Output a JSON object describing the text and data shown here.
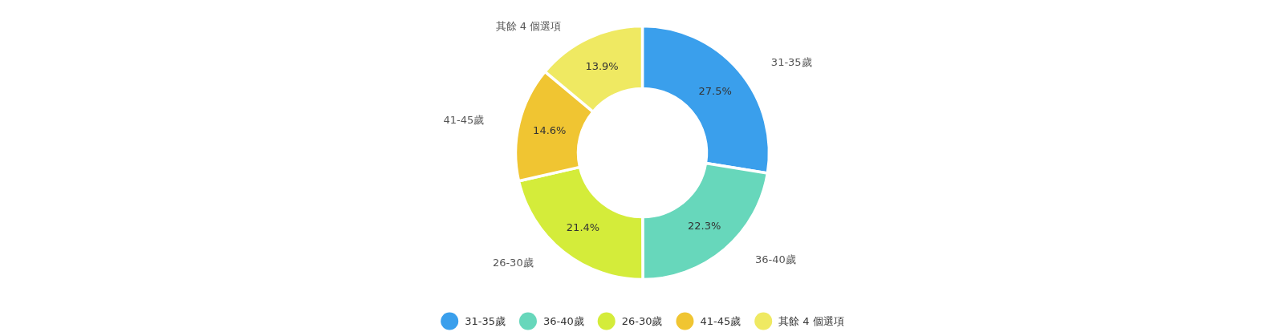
{
  "chart_data": {
    "type": "donut",
    "categories": [
      "31-35歲",
      "36-40歲",
      "26-30歲",
      "41-45歲",
      "其餘 4 個選項"
    ],
    "values": [
      27.5,
      22.3,
      21.4,
      14.6,
      13.9
    ],
    "value_labels": [
      "27.5%",
      "22.3%",
      "21.4%",
      "14.6%",
      "13.9%"
    ],
    "colors": [
      "#3a9fec",
      "#67d7bb",
      "#d4ec3a",
      "#f0c532",
      "#efe962"
    ],
    "legend": "bottom"
  }
}
